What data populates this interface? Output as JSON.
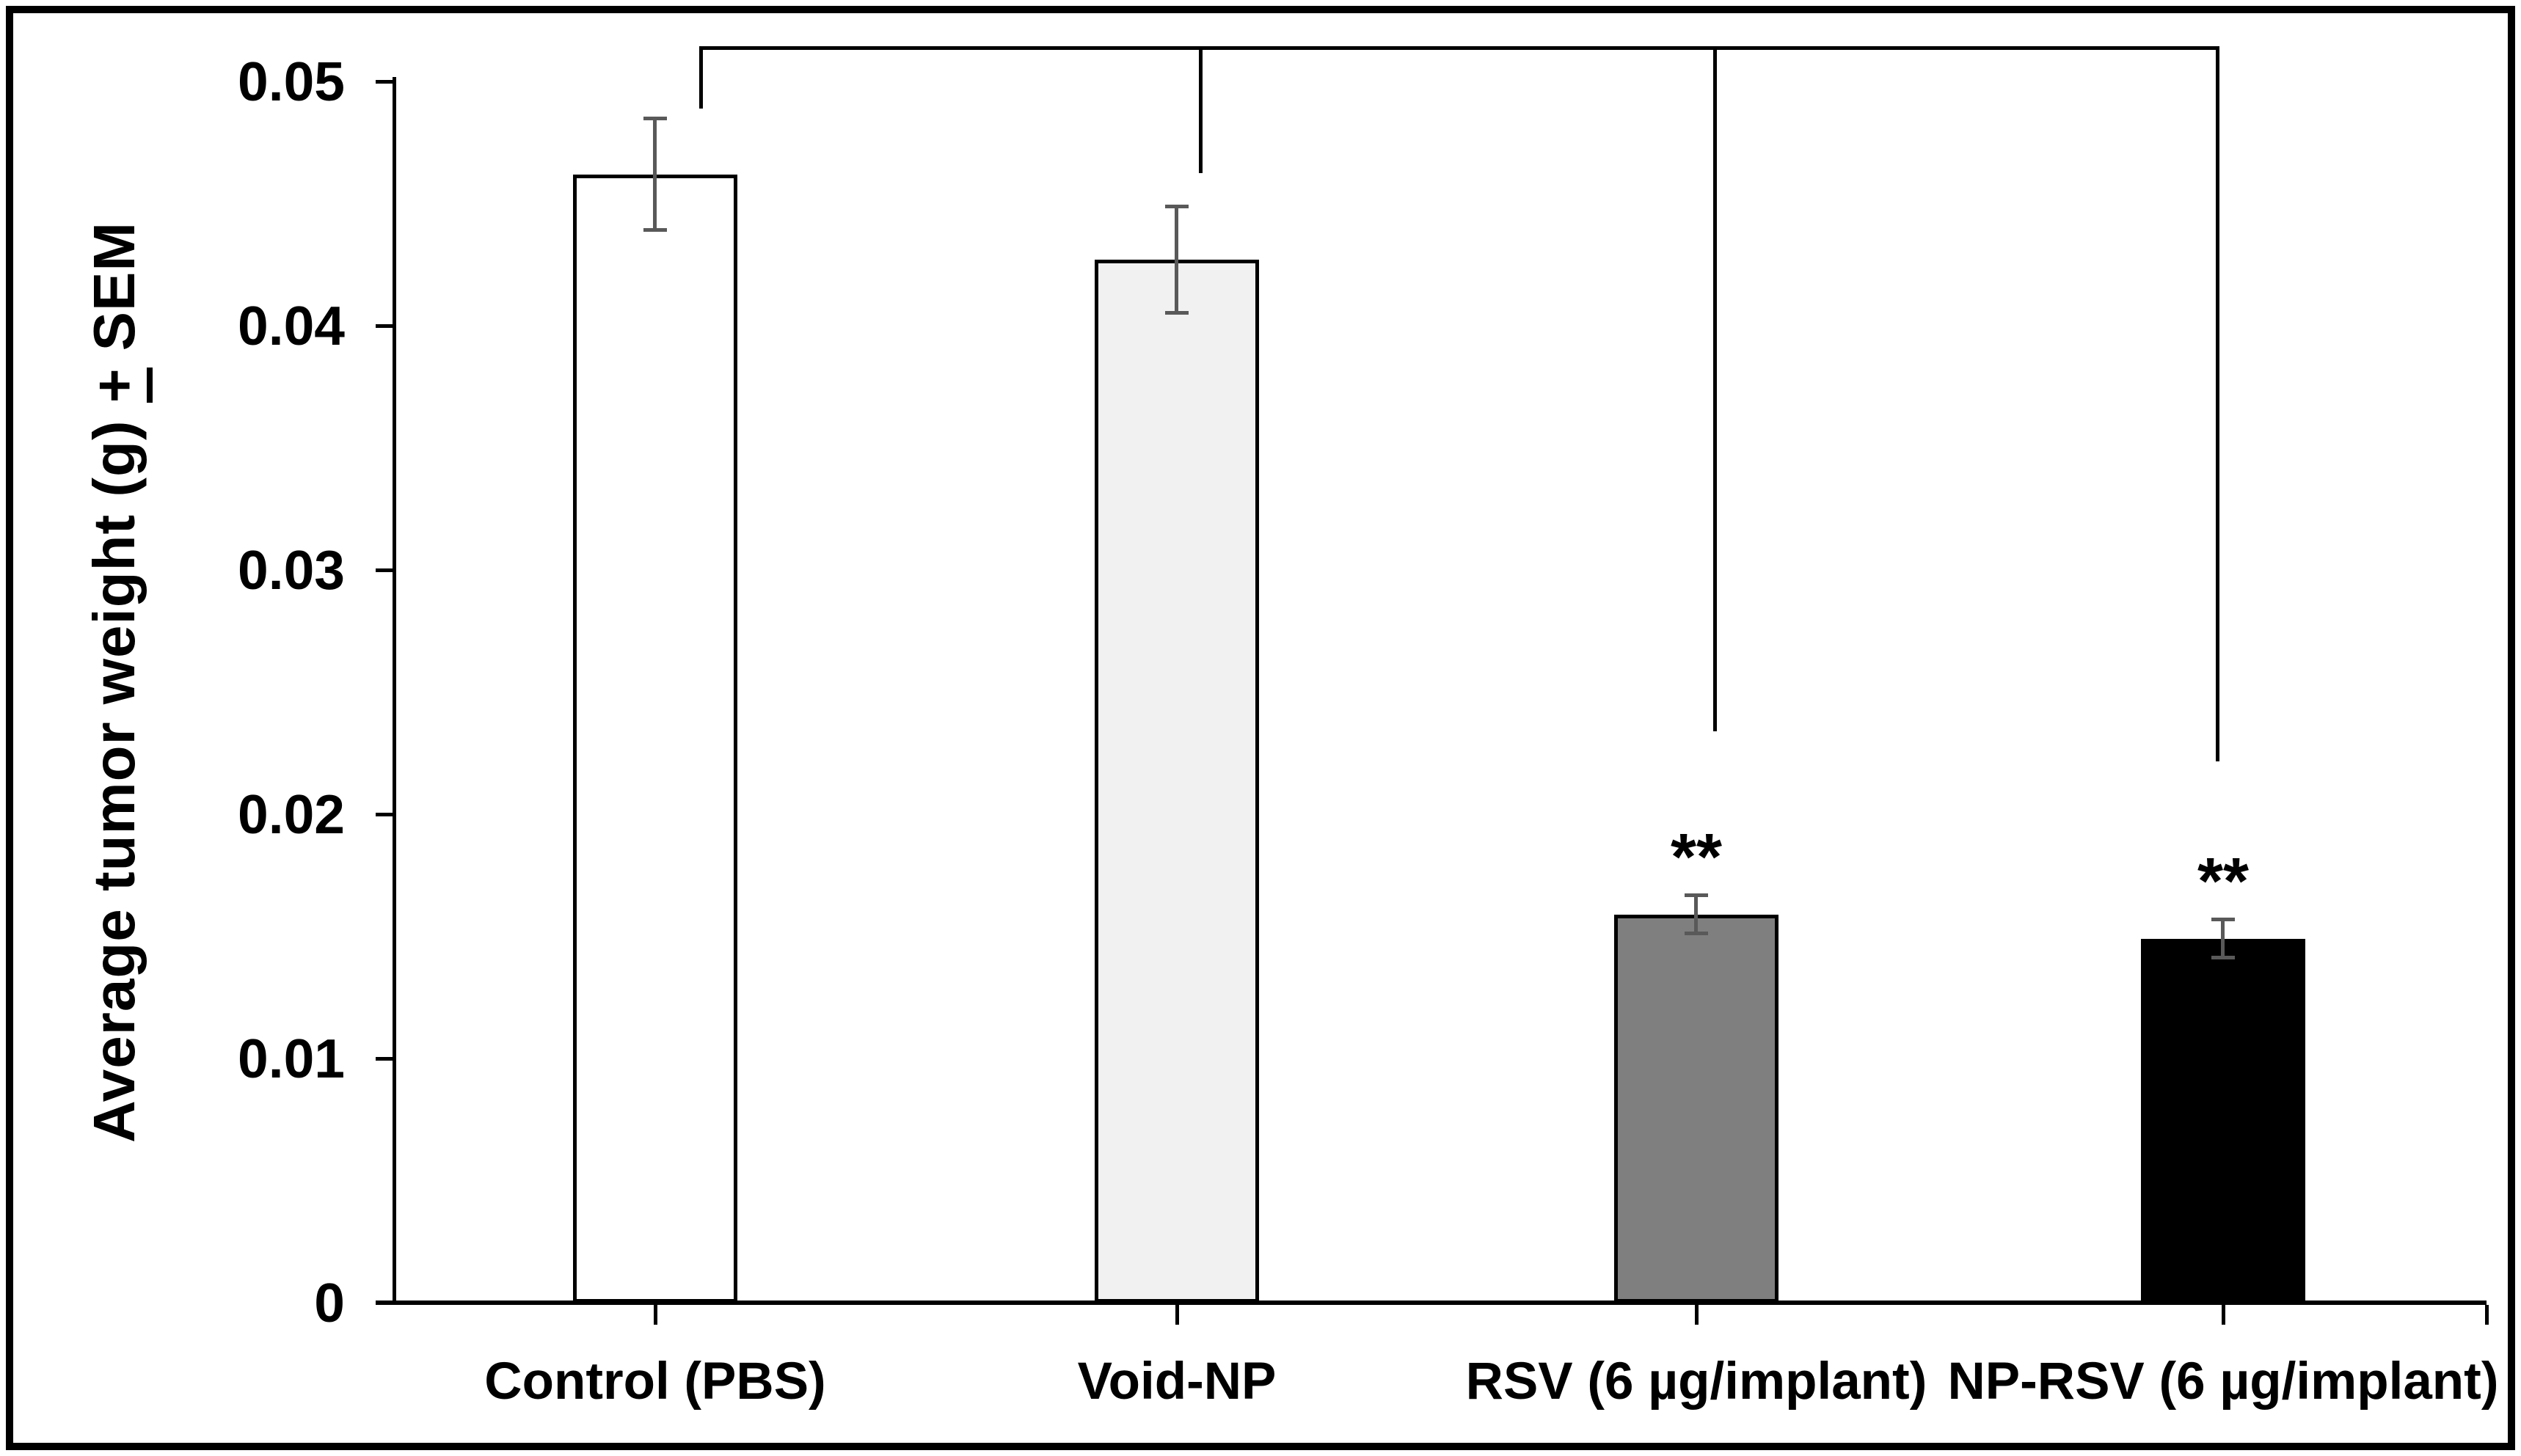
{
  "y_axis": {
    "title_prefix": "Average tumor weight (g) ",
    "title_pm": "+",
    "title_suffix": " SEM",
    "tick_labels": [
      "0.05",
      "0.04",
      "0.03",
      "0.02",
      "0.01",
      "0"
    ]
  },
  "chart_data": {
    "type": "bar",
    "title": "",
    "xlabel": "",
    "ylabel": "Average tumor weight (g) ± SEM",
    "ylim": [
      0,
      0.05
    ],
    "ytick_interval": 0.01,
    "grid": false,
    "legend": false,
    "categories": [
      "Control (PBS)",
      "Void-NP",
      "RSV (6 µg/implant)",
      "NP-RSV (6 µg/implant)"
    ],
    "values": [
      0.0462,
      0.0427,
      0.0159,
      0.0149
    ],
    "sem": [
      0.0023,
      0.0022,
      0.0008,
      0.0008
    ],
    "significance": [
      "",
      "",
      "**",
      "**"
    ],
    "bar_fill_colors": [
      "#ffffff",
      "#f1f1f1",
      "#7f7f7f",
      "#000000"
    ],
    "bar_border_color": "#000000",
    "error_bar_color": "#595959",
    "significance_bracket": {
      "marker_meaning": "**",
      "spans_categories": [
        0,
        3
      ],
      "drop_above_categories": [
        0,
        1,
        2,
        3
      ]
    }
  }
}
